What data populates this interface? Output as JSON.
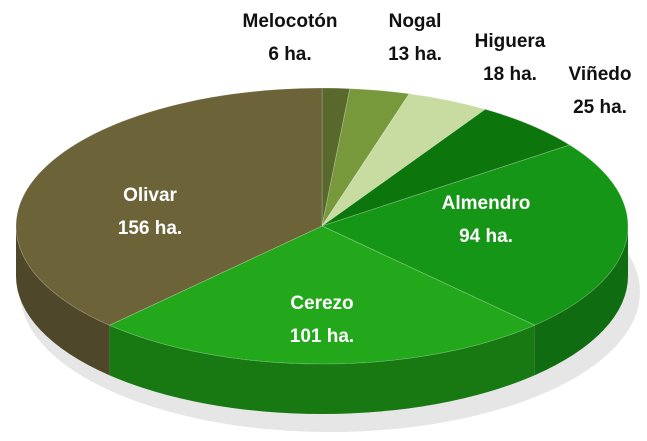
{
  "chart_data": {
    "type": "pie",
    "categories": [
      "Melocotón",
      "Nogal",
      "Higuera",
      "Viñedo",
      "Almendro",
      "Cerezo",
      "Olivar"
    ],
    "values": [
      6,
      13,
      18,
      25,
      94,
      101,
      156
    ],
    "value_labels": [
      "6 ha.",
      "13 ha.",
      "18 ha.",
      "25 ha.",
      "94 ha.",
      "101 ha.",
      "156 ha."
    ],
    "colors": [
      "#59682c",
      "#78983c",
      "#c8dca2",
      "#0c760c",
      "#169616",
      "#22a81a",
      "#6c6339"
    ]
  }
}
